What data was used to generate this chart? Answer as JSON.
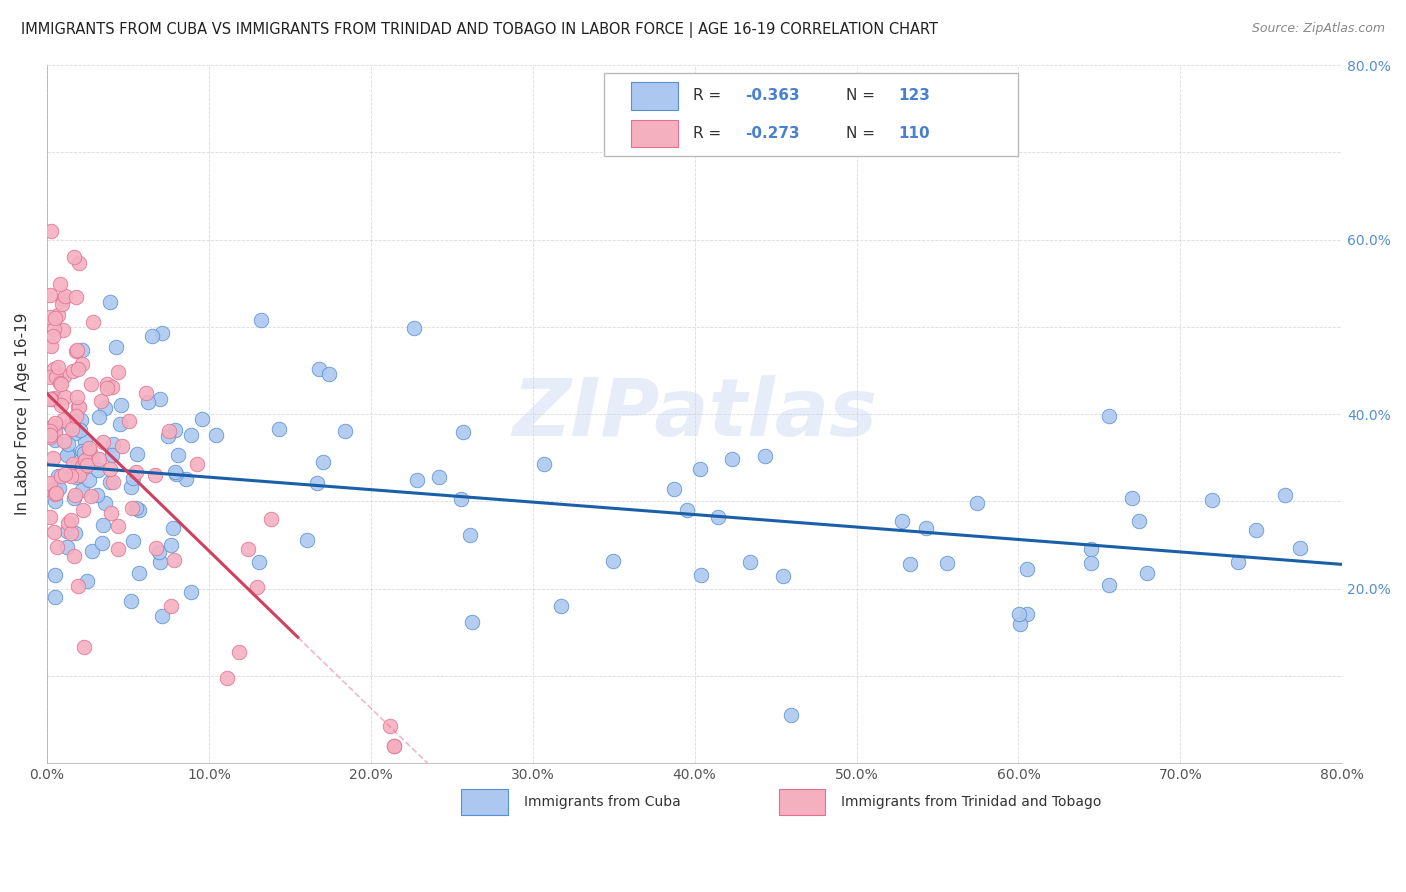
{
  "title": "IMMIGRANTS FROM CUBA VS IMMIGRANTS FROM TRINIDAD AND TOBAGO IN LABOR FORCE | AGE 16-19 CORRELATION CHART",
  "source": "Source: ZipAtlas.com",
  "ylabel": "In Labor Force | Age 16-19",
  "legend_labels": [
    "Immigrants from Cuba",
    "Immigrants from Trinidad and Tobago"
  ],
  "cuba_R": -0.363,
  "cuba_N": 123,
  "tt_R": -0.273,
  "tt_N": 110,
  "cuba_color": "#adc8f0",
  "cuba_edge_color": "#5590d0",
  "tt_color": "#f5b0c0",
  "tt_edge_color": "#e07090",
  "cuba_line_color": "#1a5fa8",
  "tt_line_color": "#d04060",
  "xlim": [
    0.0,
    0.8
  ],
  "ylim": [
    0.0,
    0.8
  ],
  "watermark": "ZIPatlas",
  "right_ytick_labels": [
    "20.0%",
    "40.0%",
    "60.0%",
    "80.0%"
  ],
  "right_ytick_vals": [
    0.2,
    0.4,
    0.6,
    0.8
  ],
  "right_ytick_color": "#5590d0"
}
